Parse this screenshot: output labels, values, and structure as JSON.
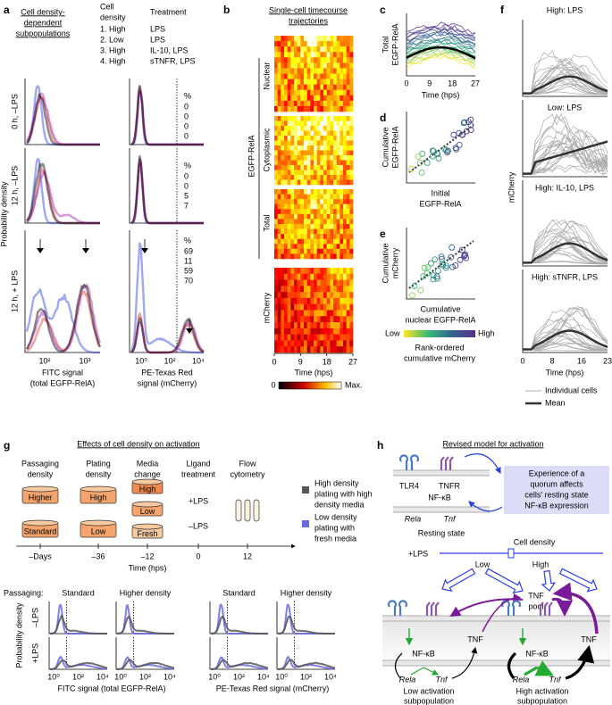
{
  "a": {
    "label": "a",
    "title": [
      "Cell density-",
      "dependent",
      "subpopulations"
    ],
    "density_header": [
      "Cell",
      "density"
    ],
    "treatment_header": "Treatment",
    "conditions": [
      {
        "density": "1. High",
        "treatment": "LPS",
        "color": "#000000"
      },
      {
        "density": "2. Low",
        "treatment": "LPS",
        "color": "#2b3fe0"
      },
      {
        "density": "3. High",
        "treatment": "IL-10, LPS",
        "color": "#e0352b"
      },
      {
        "density": "4. High",
        "treatment": "sTNFR, LPS",
        "color": "#a41fb0"
      }
    ],
    "rows": [
      {
        "label": "0 h, –LPS",
        "percent_header": "%",
        "percents": [
          0,
          0,
          0,
          0
        ]
      },
      {
        "label": "12 h, –LPS",
        "percent_header": "%",
        "percents": [
          0,
          0,
          5,
          7
        ]
      },
      {
        "label": "12 h, + LPS",
        "percent_header": "%",
        "percents": [
          69,
          11,
          59,
          70
        ]
      }
    ],
    "y_label": "Probability density",
    "fitc_ticks": [
      "10²",
      "10³"
    ],
    "fitc_label": [
      "FITC signal",
      "(total EGFP-RelA)"
    ],
    "pe_ticks": [
      "10⁰",
      "10²",
      "10⁴"
    ],
    "pe_label": [
      "PE-Texas Red",
      "signal (mCherry)"
    ]
  },
  "b": {
    "label": "b",
    "title": [
      "Single-cell timecourse",
      "trajectories"
    ],
    "group": "EGFP-RelA",
    "blocks": [
      "Nuclear",
      "Cytoplasmic",
      "Total",
      "mCherry"
    ],
    "xticks": [
      0,
      9,
      18,
      27
    ],
    "x_label": "Time (hps)",
    "colorbar": [
      0,
      "Max."
    ]
  },
  "c": {
    "label": "c",
    "y_label": [
      "Total",
      "EGFP-RelA"
    ],
    "xticks": [
      0,
      9,
      18,
      27
    ],
    "x_label": "Time (hps)"
  },
  "d": {
    "label": "d",
    "y_label": [
      "Cumulative",
      "EGFP-RelA"
    ],
    "x_label": [
      "Initial",
      "EGFP-RelA"
    ]
  },
  "e": {
    "label": "e",
    "y_label": [
      "Cumulative",
      "mCherry"
    ],
    "x_label": [
      "Cumulative",
      "nuclear EGFP-RelA"
    ],
    "colorbar": [
      "Low",
      "High"
    ],
    "colorbar_label": [
      "Rank-ordered",
      "cumulative mCherry"
    ]
  },
  "f": {
    "label": "f",
    "panels": [
      {
        "title": "High: LPS",
        "color": "#000000"
      },
      {
        "title": "Low: LPS",
        "color": "#2b3fe0"
      },
      {
        "title": "High: IL-10, LPS",
        "color": "#e0352b"
      },
      {
        "title": "High: sTNFR, LPS",
        "color": "#a41fb0"
      }
    ],
    "y_label": "mCherry",
    "xticks": [
      0,
      8,
      16,
      23
    ],
    "x_label": "Time (hps)",
    "legend": [
      "Individual cells",
      "Mean"
    ]
  },
  "g": {
    "label": "g",
    "title": "Effects of cell density on activation",
    "steps": [
      [
        "Passaging",
        "density"
      ],
      [
        "Plating",
        "density"
      ],
      [
        "Media",
        "change"
      ],
      [
        "Ligand",
        "treatment"
      ],
      [
        "Flow",
        "cytometry"
      ]
    ],
    "passaging": [
      "Higher",
      "Standard"
    ],
    "plating": [
      "High",
      "Low"
    ],
    "media": [
      "High",
      "Low",
      "Fresh"
    ],
    "ligand": [
      "+LPS",
      "–LPS"
    ],
    "timeline": [
      "–Days",
      "–36",
      "–12",
      0,
      12
    ],
    "x_label": "Time (hps)",
    "legend": [
      {
        "text": [
          "High density",
          "plating with high",
          "density media"
        ],
        "color": "#555555"
      },
      {
        "text": [
          "Low density",
          "plating with",
          "fresh media"
        ],
        "color": "#6b6be0"
      }
    ],
    "passaging_label": "Passaging:",
    "columns": [
      "Standard",
      "Higher density",
      "Standard",
      "Higher density"
    ],
    "y_label": "Probability density",
    "rows": [
      "–LPS",
      "+LPS"
    ],
    "xticks": [
      [
        "10⁰",
        "10²",
        "10⁴"
      ],
      [
        "10⁰",
        "10²",
        "10⁴"
      ],
      [
        "10⁰",
        "10²",
        "10⁴"
      ],
      [
        "10⁰",
        "10²",
        "10⁴"
      ]
    ],
    "fitc_label": "FITC signal (total EGFP-RelA)",
    "pe_label": "PE-Texas Red signal (mCherry)"
  },
  "h": {
    "label": "h",
    "title": "Revised model for activation",
    "resting": {
      "receptors": [
        "TLR4",
        "TNFR"
      ],
      "nfkb": "NF-κB",
      "genes": [
        "Rela",
        "Tnf"
      ],
      "caption": "Resting state"
    },
    "quorum": [
      "Experience of a",
      "quorum affects",
      "cells' resting state",
      "NF-κB expression"
    ],
    "density": "Cell density",
    "lps": "+LPS",
    "levels": [
      "Low",
      "High"
    ],
    "pool": [
      "TNF",
      "pool"
    ],
    "cells": [
      {
        "tnf": "TNF",
        "nfkb": "NF-κB",
        "genes": [
          "Rela",
          "Tnf"
        ],
        "caption": [
          "Low activation",
          "subpopulation"
        ]
      },
      {
        "tnf": "TNF",
        "nfkb": "NF-κB",
        "genes": [
          "Rela",
          "Tnf"
        ],
        "caption": [
          "High activation",
          "subpopulation"
        ]
      }
    ]
  }
}
